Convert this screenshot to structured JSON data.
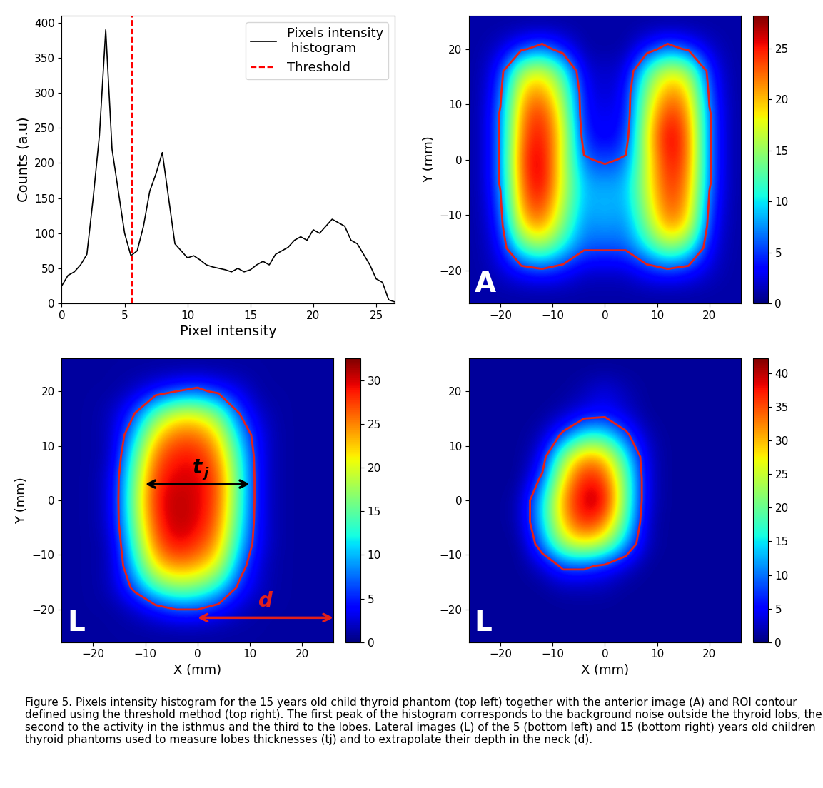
{
  "chart_data": [
    {
      "type": "line",
      "x": [
        0,
        0.5,
        1,
        1.5,
        2,
        2.5,
        3,
        3.5,
        4,
        4.5,
        5,
        5.5,
        6,
        6.5,
        7,
        7.5,
        8,
        8.5,
        9,
        9.5,
        10,
        10.5,
        11,
        11.5,
        12,
        12.5,
        13,
        13.5,
        14,
        14.5,
        15,
        15.5,
        16,
        16.5,
        17,
        17.5,
        18,
        18.5,
        19,
        19.5,
        20,
        20.5,
        21,
        21.5,
        22,
        22.5,
        23,
        23.5,
        24,
        24.5,
        25,
        25.5,
        26,
        26.5
      ],
      "series": [
        {
          "name": "Pixels intensity\n histogram",
          "color": "black",
          "line_style": "solid",
          "values": [
            25,
            40,
            45,
            55,
            70,
            150,
            240,
            390,
            220,
            160,
            100,
            68,
            75,
            110,
            160,
            185,
            215,
            150,
            85,
            75,
            65,
            68,
            62,
            55,
            52,
            50,
            48,
            45,
            50,
            45,
            48,
            55,
            60,
            55,
            70,
            75,
            80,
            90,
            95,
            90,
            105,
            100,
            110,
            120,
            115,
            110,
            90,
            85,
            70,
            55,
            35,
            30,
            5,
            2
          ]
        }
      ],
      "threshold": {
        "name": "Threshold",
        "value": 5.6,
        "color": "red",
        "line_style": "dashed"
      },
      "x_label": "Pixel intensity",
      "y_label": "Counts (a.u)",
      "xlim": [
        0,
        26.5
      ],
      "ylim": [
        0,
        410
      ],
      "xticks": [
        0,
        5,
        10,
        15,
        20,
        25
      ],
      "yticks": [
        0,
        50,
        100,
        150,
        200,
        250,
        300,
        350,
        400
      ],
      "legend": "upper right"
    },
    {
      "type": "heatmap",
      "panel_label": "A",
      "x": [
        -24,
        -20,
        -16,
        -12,
        -8,
        -4,
        0,
        4,
        8,
        12,
        16,
        20,
        24
      ],
      "y": [
        24,
        20,
        16,
        12,
        8,
        4,
        0,
        -4,
        -8,
        -12,
        -16,
        -20,
        -24
      ],
      "cells": [
        [
          1,
          1,
          1,
          1,
          1,
          1,
          1,
          1,
          1,
          1,
          1,
          1,
          1
        ],
        [
          1,
          2,
          5,
          7,
          4,
          1,
          1,
          1,
          4,
          7,
          5,
          2,
          1
        ],
        [
          1,
          4,
          16,
          18,
          12,
          2,
          2,
          2,
          12,
          18,
          16,
          4,
          1
        ],
        [
          1,
          5,
          20,
          22,
          15,
          3,
          2,
          3,
          15,
          22,
          20,
          5,
          1
        ],
        [
          1,
          6,
          22,
          25,
          17,
          3,
          3,
          3,
          17,
          25,
          22,
          6,
          1
        ],
        [
          1,
          6,
          23,
          26,
          18,
          4,
          3,
          4,
          18,
          27,
          23,
          6,
          1
        ],
        [
          1,
          6,
          24,
          27,
          17,
          6,
          5,
          6,
          17,
          26,
          23,
          6,
          1
        ],
        [
          1,
          6,
          23,
          27,
          17,
          8,
          8,
          8,
          17,
          25,
          22,
          6,
          1
        ],
        [
          1,
          5,
          22,
          25,
          16,
          8,
          9,
          8,
          16,
          24,
          21,
          5,
          1
        ],
        [
          1,
          4,
          19,
          22,
          14,
          7,
          8,
          7,
          14,
          22,
          19,
          4,
          1
        ],
        [
          1,
          3,
          12,
          15,
          10,
          6,
          6,
          6,
          10,
          15,
          12,
          3,
          1
        ],
        [
          1,
          2,
          4,
          5,
          4,
          2,
          2,
          2,
          4,
          5,
          4,
          2,
          1
        ],
        [
          1,
          1,
          1,
          1,
          1,
          1,
          1,
          1,
          1,
          1,
          1,
          1,
          1
        ]
      ],
      "y_label": "Y (mm)",
      "xlim": [
        -26,
        26
      ],
      "ylim": [
        -26,
        26
      ],
      "xticks": [
        {
          "value": -20,
          "label": "−20"
        },
        {
          "value": -10,
          "label": "−10"
        },
        0,
        10,
        20
      ],
      "yticks": [
        {
          "value": -20,
          "label": "−20"
        },
        {
          "value": -10,
          "label": "−10"
        },
        0,
        10,
        20
      ],
      "colorbar_range": [
        0,
        28.2
      ],
      "colorbar_ticks": [
        0,
        5,
        10,
        15,
        20,
        25
      ],
      "contour_level": 5.6,
      "color": "#e3201b"
    },
    {
      "type": "heatmap",
      "panel_label": "L",
      "x": [
        -24,
        -20,
        -16,
        -12,
        -8,
        -4,
        0,
        4,
        8,
        12,
        16,
        20,
        24
      ],
      "y": [
        24,
        20,
        16,
        12,
        8,
        4,
        0,
        -4,
        -8,
        -12,
        -16,
        -20,
        -24
      ],
      "cells": [
        [
          1,
          1,
          1,
          1,
          1,
          1,
          1,
          1,
          1,
          1,
          1,
          1,
          1
        ],
        [
          1,
          1,
          1,
          2,
          4,
          6,
          7,
          5,
          3,
          1,
          1,
          1,
          1
        ],
        [
          1,
          1,
          2,
          6,
          15,
          20,
          20,
          16,
          6,
          2,
          1,
          1,
          1
        ],
        [
          1,
          1,
          2,
          10,
          22,
          26,
          26,
          22,
          10,
          3,
          1,
          1,
          1
        ],
        [
          1,
          1,
          2,
          14,
          26,
          29,
          29,
          25,
          13,
          3,
          1,
          1,
          1
        ],
        [
          1,
          1,
          3,
          16,
          28,
          30,
          30,
          27,
          14,
          3,
          1,
          1,
          1
        ],
        [
          1,
          1,
          3,
          17,
          29,
          31,
          30,
          27,
          14,
          3,
          1,
          1,
          1
        ],
        [
          1,
          1,
          3,
          16,
          28,
          31,
          30,
          26,
          13,
          3,
          1,
          1,
          1
        ],
        [
          1,
          1,
          2,
          14,
          26,
          30,
          28,
          24,
          11,
          3,
          1,
          1,
          1
        ],
        [
          1,
          1,
          2,
          11,
          22,
          25,
          24,
          20,
          8,
          2,
          1,
          1,
          1
        ],
        [
          1,
          1,
          2,
          7,
          14,
          17,
          16,
          12,
          5,
          2,
          1,
          1,
          1
        ],
        [
          1,
          1,
          1,
          2,
          4,
          6,
          6,
          4,
          2,
          1,
          1,
          1,
          1
        ],
        [
          1,
          1,
          1,
          1,
          1,
          1,
          1,
          1,
          1,
          1,
          1,
          1,
          1
        ]
      ],
      "x_label": "X (mm)",
      "y_label": "Y (mm)",
      "xlim": [
        -26,
        26
      ],
      "ylim": [
        -26,
        26
      ],
      "xticks": [
        {
          "value": -20,
          "label": "−20"
        },
        {
          "value": -10,
          "label": "−10"
        },
        0,
        10,
        20
      ],
      "yticks": [
        {
          "value": -20,
          "label": "−20"
        },
        {
          "value": -10,
          "label": "−10"
        },
        0,
        10,
        20
      ],
      "colorbar_range": [
        0,
        32.5
      ],
      "colorbar_ticks": [
        0,
        5,
        10,
        15,
        20,
        25,
        30
      ],
      "contour_level": 6,
      "color": "#e3201b",
      "annotations": [
        {
          "text": "t",
          "subscript": "j",
          "x": [
            -10,
            10
          ],
          "y": 3,
          "color": "black"
        },
        {
          "text": "d",
          "x": [
            0,
            26
          ],
          "y": -21.5,
          "color": "#e3201b"
        }
      ]
    },
    {
      "type": "heatmap",
      "panel_label": "L",
      "x": [
        -24,
        -20,
        -16,
        -12,
        -8,
        -4,
        0,
        4,
        8,
        12,
        16,
        20,
        24
      ],
      "y": [
        24,
        20,
        16,
        12,
        8,
        4,
        0,
        -4,
        -8,
        -12,
        -16,
        -20,
        -24
      ],
      "cells": [
        [
          1,
          1,
          1,
          1,
          1,
          1,
          1,
          1,
          1,
          1,
          1,
          1,
          1
        ],
        [
          1,
          1,
          1,
          1,
          1,
          2,
          4,
          2,
          1,
          1,
          1,
          1,
          1
        ],
        [
          1,
          1,
          1,
          1,
          2,
          4,
          5,
          3,
          1,
          1,
          1,
          1,
          1
        ],
        [
          1,
          1,
          1,
          2,
          8,
          16,
          16,
          8,
          2,
          1,
          1,
          1,
          1
        ],
        [
          1,
          1,
          1,
          4,
          22,
          32,
          30,
          16,
          3,
          1,
          1,
          1,
          1
        ],
        [
          1,
          1,
          1,
          8,
          28,
          38,
          36,
          20,
          3,
          1,
          1,
          1,
          1
        ],
        [
          1,
          1,
          2,
          14,
          32,
          40,
          40,
          20,
          3,
          1,
          1,
          1,
          1
        ],
        [
          1,
          1,
          2,
          14,
          30,
          38,
          34,
          18,
          2,
          1,
          1,
          1,
          1
        ],
        [
          1,
          1,
          1,
          10,
          24,
          28,
          24,
          12,
          2,
          1,
          1,
          1,
          1
        ],
        [
          1,
          1,
          1,
          3,
          8,
          8,
          6,
          3,
          1,
          1,
          1,
          1,
          1
        ],
        [
          1,
          1,
          1,
          1,
          2,
          2,
          2,
          1,
          1,
          1,
          1,
          1,
          1
        ],
        [
          1,
          1,
          1,
          1,
          1,
          1,
          1,
          1,
          1,
          1,
          1,
          1,
          1
        ],
        [
          1,
          1,
          1,
          1,
          1,
          1,
          1,
          1,
          1,
          1,
          1,
          1,
          1
        ]
      ],
      "x_label": "X (mm)",
      "xlim": [
        -26,
        26
      ],
      "ylim": [
        -26,
        26
      ],
      "xticks": [
        {
          "value": -20,
          "label": "−20"
        },
        {
          "value": -10,
          "label": "−10"
        },
        0,
        10,
        20
      ],
      "yticks": [
        {
          "value": -20,
          "label": "−20"
        },
        {
          "value": -10,
          "label": "−10"
        },
        0,
        10,
        20
      ],
      "colorbar_range": [
        0,
        42.2
      ],
      "colorbar_ticks": [
        0,
        5,
        10,
        15,
        20,
        25,
        30,
        35,
        40
      ],
      "contour_level": 7,
      "color": "#e3201b"
    }
  ],
  "caption": "Figure 5. Pixels intensity histogram for the 15 years old child thyroid phantom (top left) together with the anterior image (A) and ROI contour defined using the threshold method (top right). The first peak of the histogram corresponds to the background noise outside the thyroid lobs, the second to the activity in the isthmus and the third to the lobes. Lateral images (L) of the 5 (bottom left) and 15 (bottom right) years old children thyroid phantoms used to measure lobes thicknesses (tj) and to extrapolate their depth in the neck (d)."
}
